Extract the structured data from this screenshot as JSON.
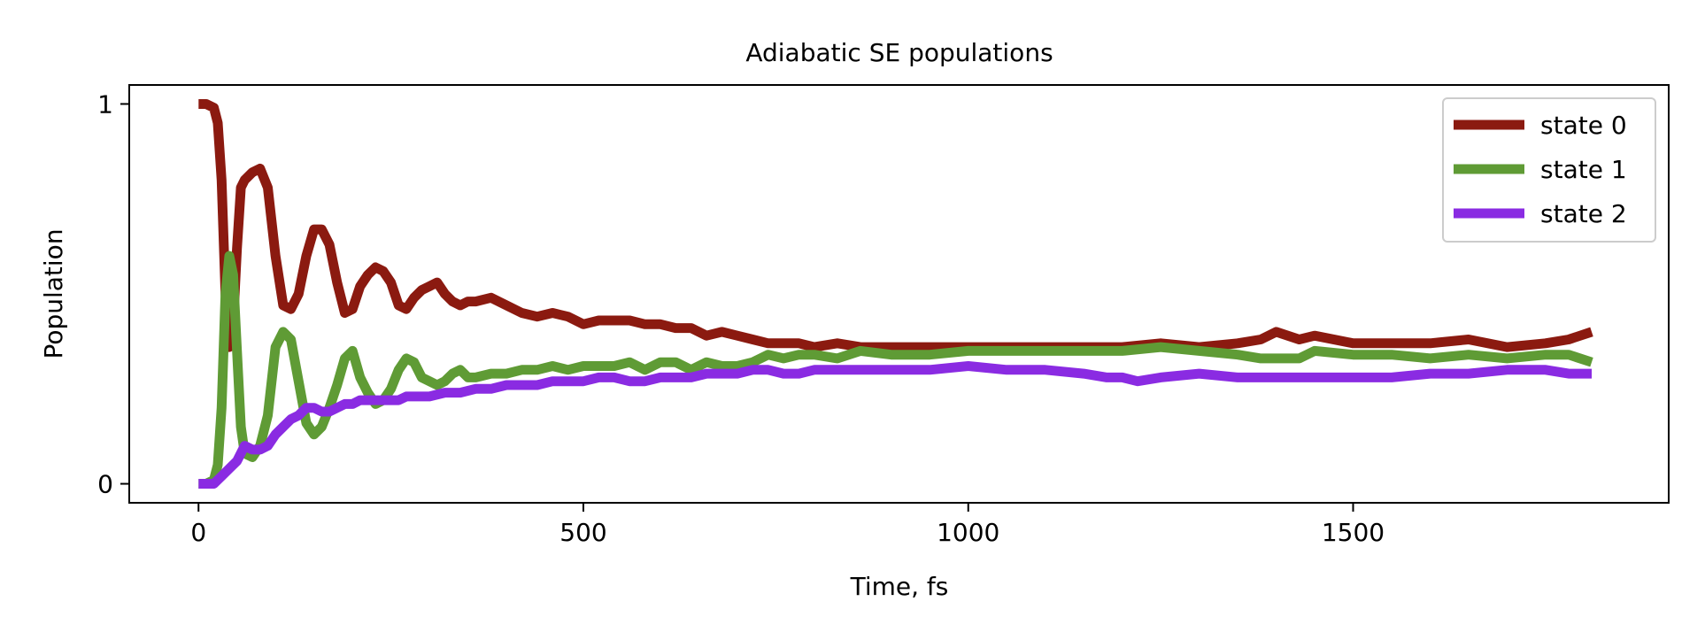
{
  "chart_data": {
    "type": "line",
    "title": "Adiabatic SE populations",
    "xlabel": "Time, fs",
    "ylabel": "Population",
    "xlim": [
      -90,
      1910
    ],
    "ylim": [
      -0.05,
      1.05
    ],
    "xticks": [
      0,
      500,
      1000,
      1500
    ],
    "xtick_labels": [
      "0",
      "500",
      "1000",
      "1500"
    ],
    "yticks": [
      0,
      1
    ],
    "ytick_labels": [
      "0",
      "1"
    ],
    "grid": false,
    "legend_position": "top-right",
    "series": [
      {
        "name": "state 0",
        "color": "#8b1a10",
        "x": [
          0,
          10,
          20,
          25,
          30,
          35,
          40,
          45,
          50,
          55,
          60,
          70,
          80,
          90,
          100,
          110,
          120,
          130,
          140,
          150,
          160,
          170,
          180,
          190,
          200,
          210,
          220,
          230,
          240,
          250,
          260,
          270,
          280,
          290,
          300,
          310,
          320,
          330,
          340,
          350,
          360,
          380,
          400,
          420,
          440,
          460,
          480,
          500,
          520,
          540,
          560,
          580,
          600,
          620,
          640,
          660,
          680,
          700,
          720,
          740,
          760,
          780,
          800,
          830,
          860,
          900,
          950,
          1000,
          1050,
          1100,
          1150,
          1200,
          1250,
          1300,
          1350,
          1380,
          1400,
          1430,
          1450,
          1500,
          1550,
          1600,
          1650,
          1700,
          1750,
          1780,
          1810
        ],
        "y": [
          1.0,
          1.0,
          0.99,
          0.95,
          0.8,
          0.5,
          0.36,
          0.42,
          0.62,
          0.78,
          0.8,
          0.82,
          0.83,
          0.78,
          0.6,
          0.47,
          0.46,
          0.5,
          0.6,
          0.67,
          0.67,
          0.63,
          0.53,
          0.45,
          0.46,
          0.52,
          0.55,
          0.57,
          0.56,
          0.53,
          0.47,
          0.46,
          0.49,
          0.51,
          0.52,
          0.53,
          0.5,
          0.48,
          0.47,
          0.48,
          0.48,
          0.49,
          0.47,
          0.45,
          0.44,
          0.45,
          0.44,
          0.42,
          0.43,
          0.43,
          0.43,
          0.42,
          0.42,
          0.41,
          0.41,
          0.39,
          0.4,
          0.39,
          0.38,
          0.37,
          0.37,
          0.37,
          0.36,
          0.37,
          0.36,
          0.36,
          0.36,
          0.36,
          0.36,
          0.36,
          0.36,
          0.36,
          0.37,
          0.36,
          0.37,
          0.38,
          0.4,
          0.38,
          0.39,
          0.37,
          0.37,
          0.37,
          0.38,
          0.36,
          0.37,
          0.38,
          0.4
        ]
      },
      {
        "name": "state 1",
        "color": "#5f9b35",
        "x": [
          0,
          10,
          20,
          25,
          30,
          35,
          40,
          45,
          50,
          55,
          60,
          70,
          80,
          90,
          100,
          110,
          120,
          130,
          140,
          150,
          160,
          170,
          180,
          190,
          200,
          210,
          220,
          230,
          240,
          250,
          260,
          270,
          280,
          290,
          300,
          310,
          320,
          330,
          340,
          350,
          360,
          380,
          400,
          420,
          440,
          460,
          480,
          500,
          520,
          540,
          560,
          580,
          600,
          620,
          640,
          660,
          680,
          700,
          720,
          740,
          760,
          780,
          800,
          830,
          860,
          900,
          950,
          1000,
          1050,
          1100,
          1150,
          1200,
          1250,
          1300,
          1350,
          1380,
          1400,
          1430,
          1450,
          1500,
          1550,
          1600,
          1650,
          1700,
          1750,
          1780,
          1810
        ],
        "y": [
          0.0,
          0.0,
          0.01,
          0.05,
          0.2,
          0.5,
          0.6,
          0.55,
          0.35,
          0.15,
          0.08,
          0.07,
          0.1,
          0.18,
          0.36,
          0.4,
          0.38,
          0.27,
          0.16,
          0.13,
          0.15,
          0.2,
          0.26,
          0.33,
          0.35,
          0.28,
          0.24,
          0.21,
          0.22,
          0.25,
          0.3,
          0.33,
          0.32,
          0.28,
          0.27,
          0.26,
          0.27,
          0.29,
          0.3,
          0.28,
          0.28,
          0.29,
          0.29,
          0.3,
          0.3,
          0.31,
          0.3,
          0.31,
          0.31,
          0.31,
          0.32,
          0.3,
          0.32,
          0.32,
          0.3,
          0.32,
          0.31,
          0.31,
          0.32,
          0.34,
          0.33,
          0.34,
          0.34,
          0.33,
          0.35,
          0.34,
          0.34,
          0.35,
          0.35,
          0.35,
          0.35,
          0.35,
          0.36,
          0.35,
          0.34,
          0.33,
          0.33,
          0.33,
          0.35,
          0.34,
          0.34,
          0.33,
          0.34,
          0.33,
          0.34,
          0.34,
          0.32
        ]
      },
      {
        "name": "state 2",
        "color": "#8a2be2",
        "x": [
          0,
          10,
          20,
          30,
          40,
          50,
          60,
          70,
          80,
          90,
          100,
          110,
          120,
          130,
          140,
          150,
          160,
          170,
          180,
          190,
          200,
          210,
          220,
          230,
          240,
          250,
          260,
          270,
          280,
          290,
          300,
          320,
          340,
          360,
          380,
          400,
          420,
          440,
          460,
          480,
          500,
          520,
          540,
          560,
          580,
          600,
          620,
          640,
          660,
          680,
          700,
          720,
          740,
          760,
          780,
          800,
          830,
          860,
          900,
          950,
          1000,
          1050,
          1100,
          1150,
          1180,
          1200,
          1220,
          1250,
          1300,
          1350,
          1400,
          1450,
          1500,
          1550,
          1600,
          1650,
          1700,
          1750,
          1780,
          1810
        ],
        "y": [
          0.0,
          0.0,
          0.0,
          0.02,
          0.04,
          0.06,
          0.1,
          0.09,
          0.09,
          0.1,
          0.13,
          0.15,
          0.17,
          0.18,
          0.2,
          0.2,
          0.19,
          0.19,
          0.2,
          0.21,
          0.21,
          0.22,
          0.22,
          0.22,
          0.22,
          0.22,
          0.22,
          0.23,
          0.23,
          0.23,
          0.23,
          0.24,
          0.24,
          0.25,
          0.25,
          0.26,
          0.26,
          0.26,
          0.27,
          0.27,
          0.27,
          0.28,
          0.28,
          0.27,
          0.27,
          0.28,
          0.28,
          0.28,
          0.29,
          0.29,
          0.29,
          0.3,
          0.3,
          0.29,
          0.29,
          0.3,
          0.3,
          0.3,
          0.3,
          0.3,
          0.31,
          0.3,
          0.3,
          0.29,
          0.28,
          0.28,
          0.27,
          0.28,
          0.29,
          0.28,
          0.28,
          0.28,
          0.28,
          0.28,
          0.29,
          0.29,
          0.3,
          0.3,
          0.29,
          0.29
        ]
      }
    ]
  }
}
